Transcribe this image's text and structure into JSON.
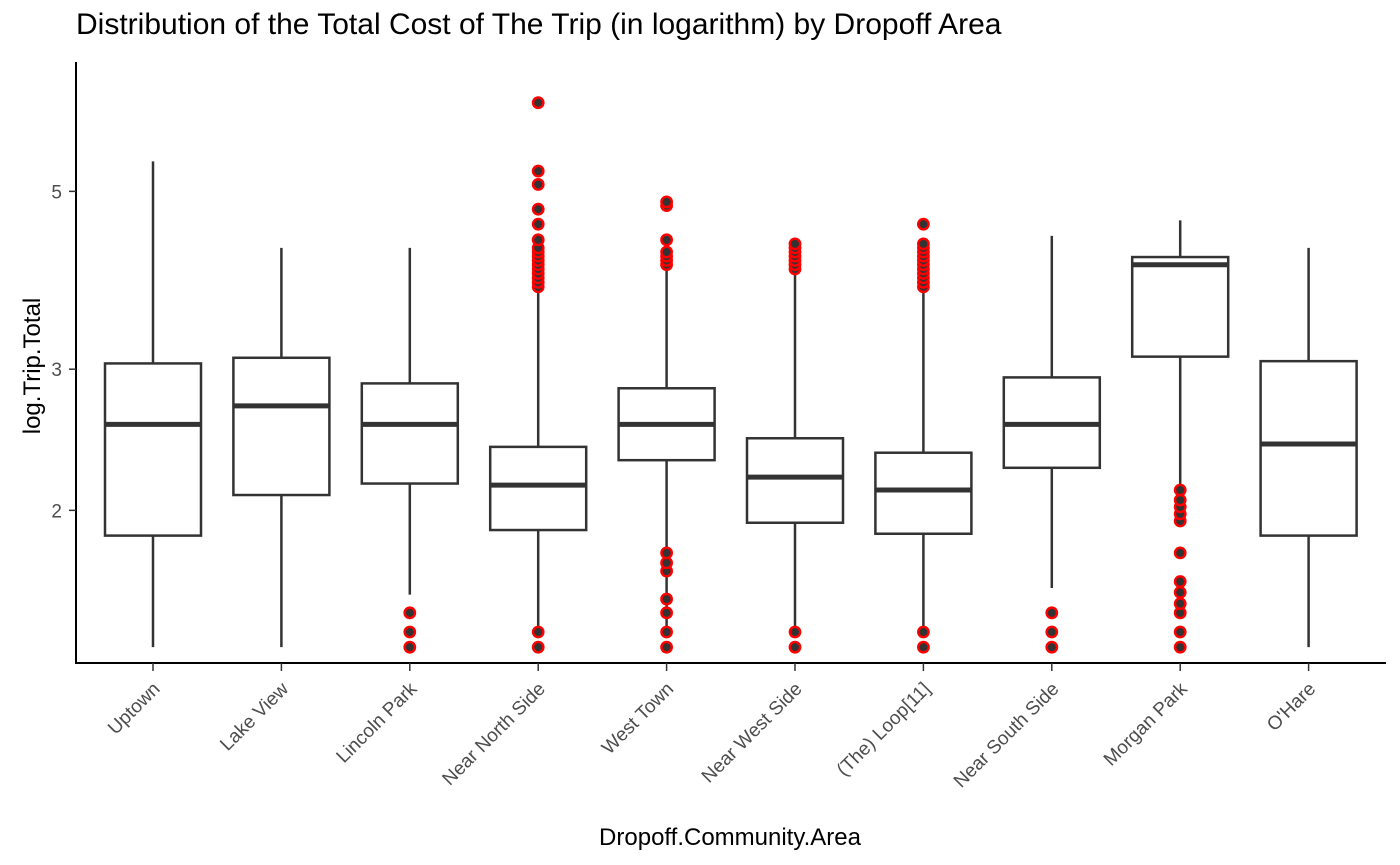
{
  "chart_data": {
    "type": "box",
    "title": "Distribution of the Total Cost of The Trip (in logarithm) by Dropoff Area",
    "xlabel": "Dropoff.Community.Area",
    "ylabel": "log.Trip.Total",
    "y_scale": "log",
    "ylim": [
      1.29,
      7.25
    ],
    "y_ticks": [
      2,
      3,
      5
    ],
    "grid": false,
    "outlier_color": "#ff0000",
    "outlier_inner_color": "#333333",
    "box_line_color": "#333333",
    "categories": [
      "Uptown",
      "Lake View",
      "Lincoln Park",
      "Near North Side",
      "West Town",
      "Near West Side",
      "(The)  Loop[11]",
      "Near South Side",
      "Morgan Park",
      "O'Hare"
    ],
    "boxes": [
      {
        "category": "Uptown",
        "whisker_low": 1.35,
        "q1": 1.86,
        "median": 2.56,
        "q3": 3.05,
        "whisker_high": 5.45,
        "outliers": []
      },
      {
        "category": "Lake View",
        "whisker_low": 1.35,
        "q1": 2.09,
        "median": 2.7,
        "q3": 3.1,
        "whisker_high": 4.25,
        "outliers": []
      },
      {
        "category": "Lincoln Park",
        "whisker_low": 1.57,
        "q1": 2.16,
        "median": 2.56,
        "q3": 2.88,
        "whisker_high": 4.25,
        "outliers": [
          1.35,
          1.41,
          1.49
        ]
      },
      {
        "category": "Near North Side",
        "whisker_low": 1.41,
        "q1": 1.89,
        "median": 2.15,
        "q3": 2.4,
        "whisker_high": 3.75,
        "outliers": [
          1.35,
          1.41,
          3.8,
          3.85,
          3.9,
          3.95,
          4.0,
          4.05,
          4.1,
          4.15,
          4.2,
          4.25,
          4.35,
          4.55,
          4.75,
          5.1,
          5.3,
          6.45
        ]
      },
      {
        "category": "West Town",
        "whisker_low": 1.41,
        "q1": 2.31,
        "median": 2.56,
        "q3": 2.84,
        "whisker_high": 4.0,
        "outliers": [
          1.35,
          1.41,
          1.49,
          1.55,
          1.68,
          1.72,
          1.77,
          4.05,
          4.1,
          4.15,
          4.2,
          4.35,
          4.8,
          4.85
        ]
      },
      {
        "category": "Near West Side",
        "whisker_low": 1.41,
        "q1": 1.93,
        "median": 2.2,
        "q3": 2.46,
        "whisker_high": 3.95,
        "outliers": [
          1.35,
          1.41,
          4.0,
          4.05,
          4.1,
          4.15,
          4.2,
          4.25,
          4.3
        ]
      },
      {
        "category": "(The)  Loop[11]",
        "whisker_low": 1.41,
        "q1": 1.87,
        "median": 2.12,
        "q3": 2.36,
        "whisker_high": 3.75,
        "outliers": [
          1.35,
          1.41,
          3.8,
          3.85,
          3.9,
          3.95,
          4.0,
          4.05,
          4.1,
          4.15,
          4.2,
          4.25,
          4.3,
          4.55
        ]
      },
      {
        "category": "Near South Side",
        "whisker_low": 1.6,
        "q1": 2.26,
        "median": 2.56,
        "q3": 2.93,
        "whisker_high": 4.4,
        "outliers": [
          1.35,
          1.41,
          1.49
        ]
      },
      {
        "category": "Morgan Park",
        "whisker_low": 2.14,
        "q1": 3.11,
        "median": 4.05,
        "q3": 4.14,
        "whisker_high": 4.6,
        "outliers": [
          1.35,
          1.41,
          1.49,
          1.53,
          1.58,
          1.63,
          1.77,
          1.94,
          1.98,
          2.02,
          2.06,
          2.12
        ]
      },
      {
        "category": "O'Hare",
        "whisker_low": 1.35,
        "q1": 1.86,
        "median": 2.42,
        "q3": 3.07,
        "whisker_high": 4.25,
        "outliers": []
      }
    ]
  }
}
